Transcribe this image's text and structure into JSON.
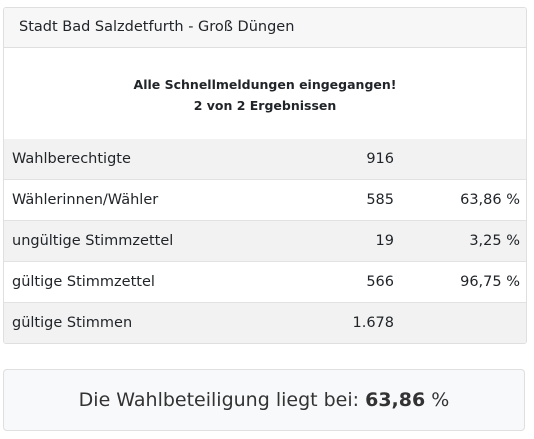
{
  "header": {
    "title": "Stadt Bad Salzdetfurth - Groß Düngen"
  },
  "notice": {
    "line1": "Alle Schnellmeldungen eingegangen!",
    "line2": "2 von 2 Ergebnissen"
  },
  "table": {
    "rows": [
      [
        "Wahlberechtigte",
        "916"
      ],
      [
        "Wählerinnen/Wähler",
        "585",
        "63,86 %"
      ],
      [
        "ungültige Stimmzettel",
        "19",
        "3,25 %"
      ],
      [
        "gültige Stimmzettel",
        "566",
        "96,75 %"
      ],
      [
        "gültige Stimmen",
        "1.678"
      ]
    ]
  },
  "turnout": {
    "prefix": "Die Wahlbeteiligung liegt bei:",
    "value": "63,86",
    "unit": "%"
  }
}
